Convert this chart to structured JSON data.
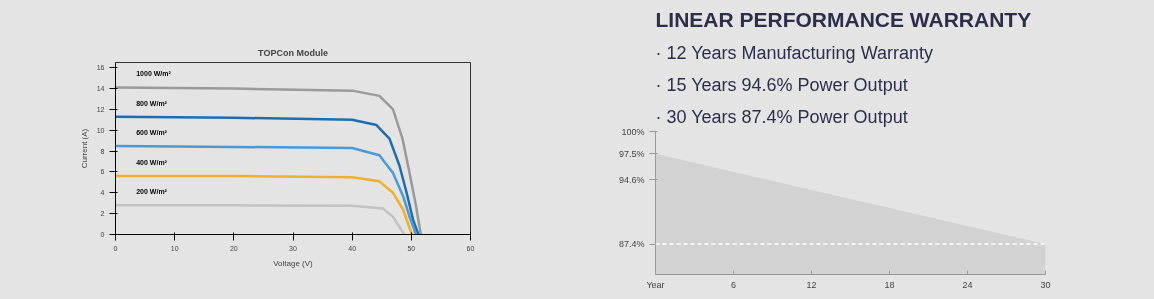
{
  "chart_data": [
    {
      "type": "line",
      "title": "TOPCon Module",
      "xlabel": "Voltage (V)",
      "ylabel": "Current (A)",
      "xlim": [
        0,
        60
      ],
      "ylim": [
        0,
        16.5
      ],
      "xticks": [
        0,
        10,
        20,
        30,
        40,
        50,
        60
      ],
      "yticks": [
        0,
        2,
        4,
        6,
        8,
        10,
        12,
        14,
        16
      ],
      "grid": false,
      "series": [
        {
          "name": "1000 W/m²",
          "color": "#9a9a9a",
          "x": [
            0,
            20,
            40,
            44.6,
            46.9,
            48.5,
            49.7,
            50.8,
            51.6
          ],
          "values": [
            14.1,
            14.0,
            13.8,
            13.3,
            12.0,
            9.2,
            5.9,
            2.7,
            0
          ]
        },
        {
          "name": "800 W/m²",
          "color": "#1f6db0",
          "x": [
            0,
            20,
            40,
            44.1,
            46.3,
            48.0,
            49.2,
            50.3,
            51.2
          ],
          "values": [
            11.3,
            11.2,
            11.0,
            10.5,
            9.2,
            6.6,
            4.0,
            1.4,
            0
          ]
        },
        {
          "name": "600 W/m²",
          "color": "#4a9ad8",
          "x": [
            0,
            20,
            40,
            44.6,
            46.9,
            48.6,
            49.7,
            50.8
          ],
          "values": [
            8.5,
            8.4,
            8.3,
            7.6,
            5.9,
            3.7,
            1.7,
            0
          ]
        },
        {
          "name": "400 W/m²",
          "color": "#f0b02a",
          "x": [
            0,
            20,
            40,
            44.6,
            46.9,
            48.6,
            50.1
          ],
          "values": [
            5.6,
            5.6,
            5.5,
            5.1,
            4.0,
            2.4,
            0
          ]
        },
        {
          "name": "200 W/m²",
          "color": "#c2c2c2",
          "x": [
            0,
            20,
            40,
            45.2,
            46.9,
            48.0,
            48.8
          ],
          "values": [
            2.8,
            2.8,
            2.75,
            2.5,
            1.7,
            0.7,
            0
          ]
        }
      ]
    },
    {
      "type": "area",
      "title": "LINEAR PERFORMANCE WARRANTY",
      "annotations": [
        "· 12 Years Manufacturing Warranty",
        "· 15 Years 94.6% Power Output",
        "· 30 Years 87.4% Power Output"
      ],
      "x": [
        0,
        30
      ],
      "xlim": [
        0,
        30
      ],
      "ylim": [
        84,
        100
      ],
      "xticks": [
        {
          "value": 0,
          "label": "Year"
        },
        6,
        12,
        18,
        24,
        30
      ],
      "yticks": [
        {
          "value": 100,
          "label": "100%"
        },
        {
          "value": 97.5,
          "label": "97.5%"
        },
        {
          "value": 94.6,
          "label": "94.6%"
        },
        {
          "value": 87.4,
          "label": "87.4%"
        }
      ],
      "grid": false,
      "series": [
        {
          "color": "#d2d2d2",
          "values": [
            97.5,
            87.4
          ]
        }
      ],
      "ref_lines": [
        {
          "axis": "y",
          "value": 87.4,
          "color": "#ffffff",
          "line_style": "dashed"
        }
      ]
    }
  ]
}
